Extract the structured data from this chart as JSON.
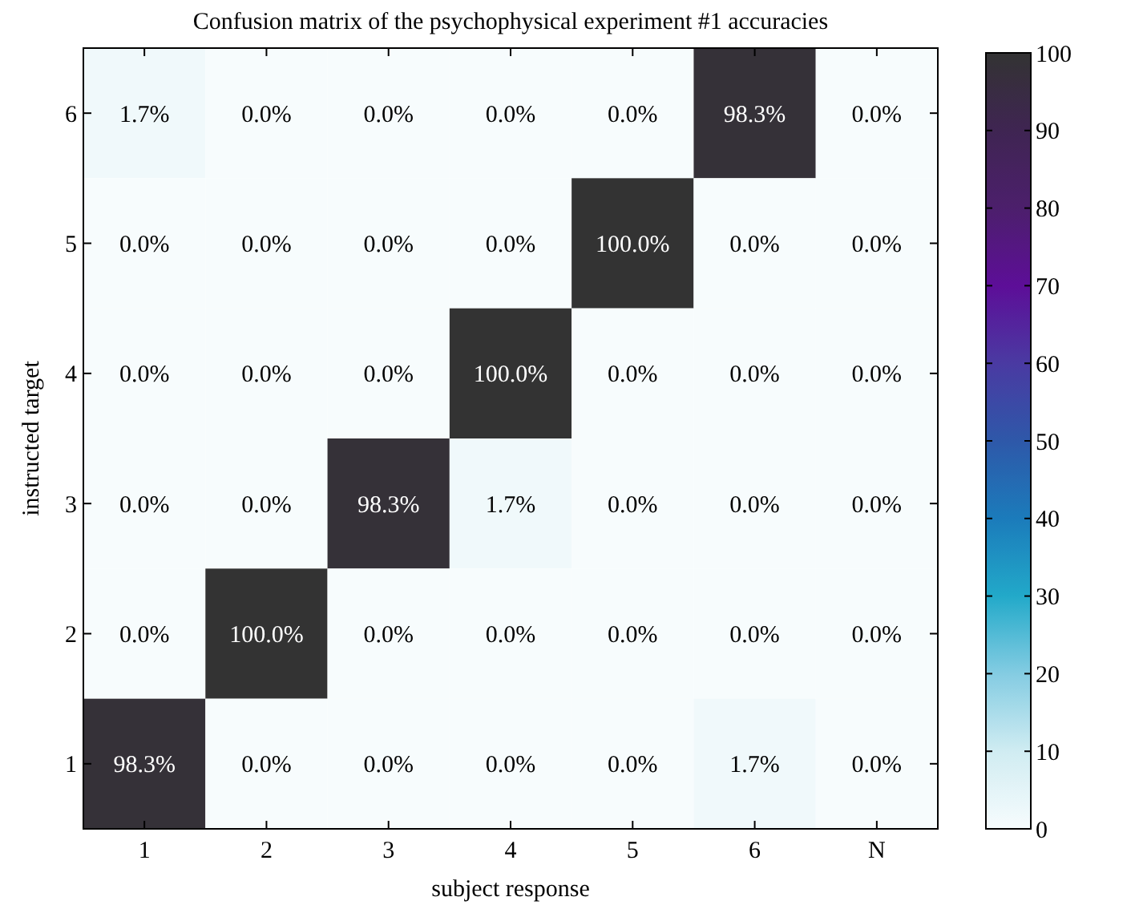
{
  "chart_data": {
    "type": "heatmap",
    "title": "Confusion matrix of the psychophysical experiment #1 accuracies",
    "xlabel": "subject response",
    "ylabel": "instructed target",
    "categories": [
      "1",
      "2",
      "3",
      "4",
      "5",
      "6",
      "N"
    ],
    "y_categories": [
      "6",
      "5",
      "4",
      "3",
      "2",
      "1"
    ],
    "cells": [
      [
        1.7,
        0,
        0,
        0,
        0,
        98.3,
        0
      ],
      [
        0,
        0,
        0,
        0,
        100,
        0,
        0
      ],
      [
        0,
        0,
        0,
        100,
        0,
        0,
        0
      ],
      [
        0,
        0,
        98.3,
        1.7,
        0,
        0,
        0
      ],
      [
        0,
        100,
        0,
        0,
        0,
        0,
        0
      ],
      [
        98.3,
        0,
        0,
        0,
        0,
        1.7,
        0
      ]
    ],
    "cell_labels": [
      [
        "1.7%",
        "0.0%",
        "0.0%",
        "0.0%",
        "0.0%",
        "98.3%",
        "0.0%"
      ],
      [
        "0.0%",
        "0.0%",
        "0.0%",
        "0.0%",
        "100.0%",
        "0.0%",
        "0.0%"
      ],
      [
        "0.0%",
        "0.0%",
        "0.0%",
        "100.0%",
        "0.0%",
        "0.0%",
        "0.0%"
      ],
      [
        "0.0%",
        "0.0%",
        "98.3%",
        "1.7%",
        "0.0%",
        "0.0%",
        "0.0%"
      ],
      [
        "0.0%",
        "100.0%",
        "0.0%",
        "0.0%",
        "0.0%",
        "0.0%",
        "0.0%"
      ],
      [
        "98.3%",
        "0.0%",
        "0.0%",
        "0.0%",
        "0.0%",
        "1.7%",
        "0.0%"
      ]
    ],
    "clim": [
      0,
      100
    ],
    "cticks": [
      0,
      10,
      20,
      30,
      40,
      50,
      60,
      70,
      80,
      90,
      100
    ]
  }
}
